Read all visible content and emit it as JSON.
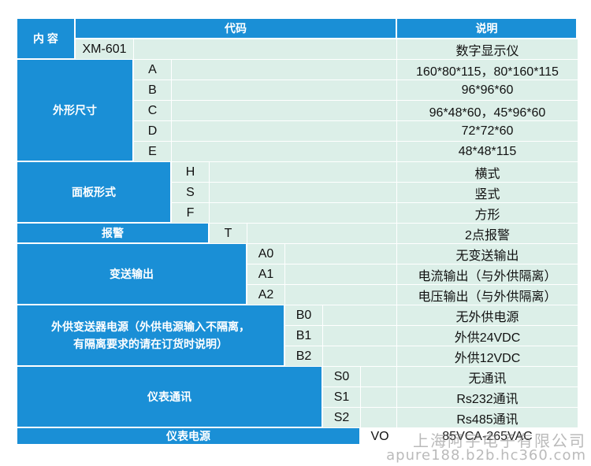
{
  "header": {
    "content": "内 容",
    "code": "代码",
    "description": "说明"
  },
  "series": {
    "code": "XM-601",
    "description": "数字显示仪"
  },
  "groups": [
    {
      "title": "外形尺寸",
      "rows": [
        {
          "code": "A",
          "description": "160*80*115，80*160*115"
        },
        {
          "code": "B",
          "description": "96*96*60"
        },
        {
          "code": "C",
          "description": "96*48*60，45*96*60"
        },
        {
          "code": "D",
          "description": "72*72*60"
        },
        {
          "code": "E",
          "description": "48*48*115"
        }
      ]
    },
    {
      "title": "面板形式",
      "rows": [
        {
          "code": "H",
          "description": "横式"
        },
        {
          "code": "S",
          "description": "竖式"
        },
        {
          "code": "F",
          "description": "方形"
        }
      ]
    },
    {
      "title": "报警",
      "rows": [
        {
          "code": "T",
          "description": "2点报警"
        }
      ]
    },
    {
      "title": "变送输出",
      "rows": [
        {
          "code": "A0",
          "description": "无变送输出"
        },
        {
          "code": "A1",
          "description": "电流输出（与外供隔离）"
        },
        {
          "code": "A2",
          "description": "电压输出（与外供隔离）"
        }
      ]
    },
    {
      "title": "外供变送器电源（外供电源输入不隔离，有隔离要求的请在订货时说明）",
      "rows": [
        {
          "code": "B0",
          "description": "无外供电源"
        },
        {
          "code": "B1",
          "description": "外供24VDC"
        },
        {
          "code": "B2",
          "description": "外供12VDC"
        }
      ]
    },
    {
      "title": "仪表通讯",
      "rows": [
        {
          "code": "S0",
          "description": "无通讯"
        },
        {
          "code": "S1",
          "description": "Rs232通讯"
        },
        {
          "code": "S2",
          "description": "Rs485通讯"
        }
      ]
    },
    {
      "title": "仪表电源",
      "rows": [
        {
          "code": "VO",
          "description": "85VCA-265VAC"
        }
      ]
    }
  ],
  "watermark": {
    "company": "上海阿宇电子有限公司",
    "url": "apure188.b2b.hc360.com"
  },
  "colors": {
    "header_blue": "#1a8fd6",
    "cell_green": "#dcefe8"
  }
}
